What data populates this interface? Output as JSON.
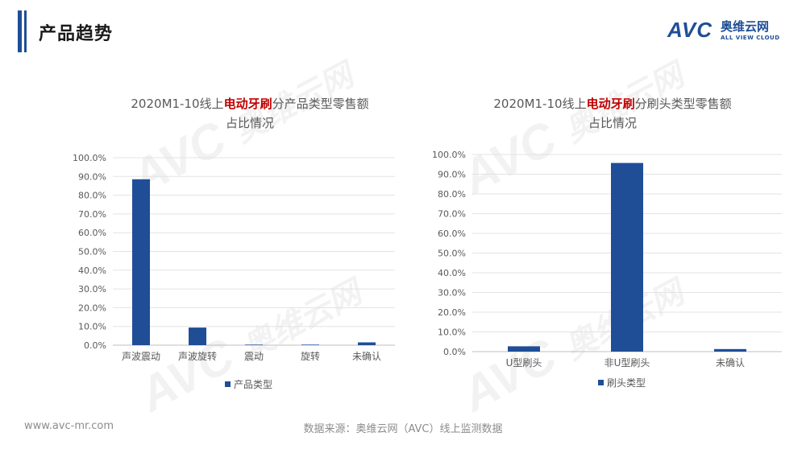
{
  "header": {
    "title": "产品趋势",
    "logo_brand": "AVC",
    "logo_cn": "奥维云网",
    "logo_en": "ALL VIEW CLOUD"
  },
  "watermark": {
    "brand": "AVC",
    "cn": "奥维云网",
    "en": "ALL VIEW CLOUD"
  },
  "chart_data": [
    {
      "type": "bar",
      "title_prefix": "2020M1-10线上",
      "title_highlight": "电动牙刷",
      "title_suffix": "分产品类型零售额",
      "title_line2": "占比情况",
      "categories": [
        "声波震动",
        "声波旋转",
        "震动",
        "旋转",
        "未确认"
      ],
      "series": [
        {
          "name": "产品类型",
          "values": [
            88.5,
            9.4,
            0.3,
            0.3,
            1.5
          ]
        }
      ],
      "ylim": [
        0,
        100
      ],
      "yticks": [
        "0.0%",
        "10.0%",
        "20.0%",
        "30.0%",
        "40.0%",
        "50.0%",
        "60.0%",
        "70.0%",
        "80.0%",
        "90.0%",
        "100.0%"
      ],
      "grid": true,
      "legend_position": "bottom",
      "bar_color": "#1f4e96"
    },
    {
      "type": "bar",
      "title_prefix": "2020M1-10线上",
      "title_highlight": "电动牙刷",
      "title_suffix": "分刷头类型零售额",
      "title_line2": "占比情况",
      "categories": [
        "U型刷头",
        "非U型刷头",
        "未确认"
      ],
      "series": [
        {
          "name": "刷头类型",
          "values": [
            2.7,
            95.7,
            1.3
          ]
        }
      ],
      "ylim": [
        0,
        100
      ],
      "yticks": [
        "0.0%",
        "10.0%",
        "20.0%",
        "30.0%",
        "40.0%",
        "50.0%",
        "60.0%",
        "70.0%",
        "80.0%",
        "90.0%",
        "100.0%"
      ],
      "grid": true,
      "legend_position": "bottom",
      "bar_color": "#1f4e96"
    }
  ],
  "footer": {
    "website": "www.avc-mr.com",
    "source": "数据来源：奥维云网（AVC）线上监测数据"
  }
}
